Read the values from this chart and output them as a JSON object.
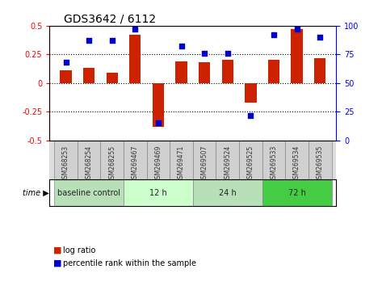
{
  "title": "GDS3642 / 6112",
  "samples": [
    "GSM268253",
    "GSM268254",
    "GSM268255",
    "GSM269467",
    "GSM269469",
    "GSM269471",
    "GSM269507",
    "GSM269524",
    "GSM269525",
    "GSM269533",
    "GSM269534",
    "GSM269535"
  ],
  "log_ratio": [
    0.11,
    0.13,
    0.09,
    0.42,
    -0.38,
    0.19,
    0.18,
    0.2,
    -0.17,
    0.2,
    0.47,
    0.22
  ],
  "percentile": [
    68,
    87,
    87,
    97,
    15,
    82,
    76,
    76,
    22,
    92,
    97,
    90
  ],
  "groups": [
    {
      "label": "baseline control",
      "start": 0,
      "end": 3,
      "color": "#90EE90"
    },
    {
      "label": "12 h",
      "start": 3,
      "end": 6,
      "color": "#aaffaa"
    },
    {
      "label": "24 h",
      "start": 6,
      "end": 9,
      "color": "#90EE90"
    },
    {
      "label": "72 h",
      "start": 9,
      "end": 12,
      "color": "#44cc44"
    }
  ],
  "bar_color": "#cc2200",
  "dot_color": "#0000cc",
  "ylim_left": [
    -0.5,
    0.5
  ],
  "ylim_right": [
    0,
    100
  ],
  "yticks_left": [
    -0.5,
    -0.25,
    0,
    0.25,
    0.5
  ],
  "yticks_right": [
    0,
    25,
    50,
    75,
    100
  ],
  "hlines": [
    -0.25,
    0,
    0.25
  ],
  "bg_color": "#ffffff",
  "plot_bg": "#ffffff",
  "grid_color": "#aaaaaa"
}
